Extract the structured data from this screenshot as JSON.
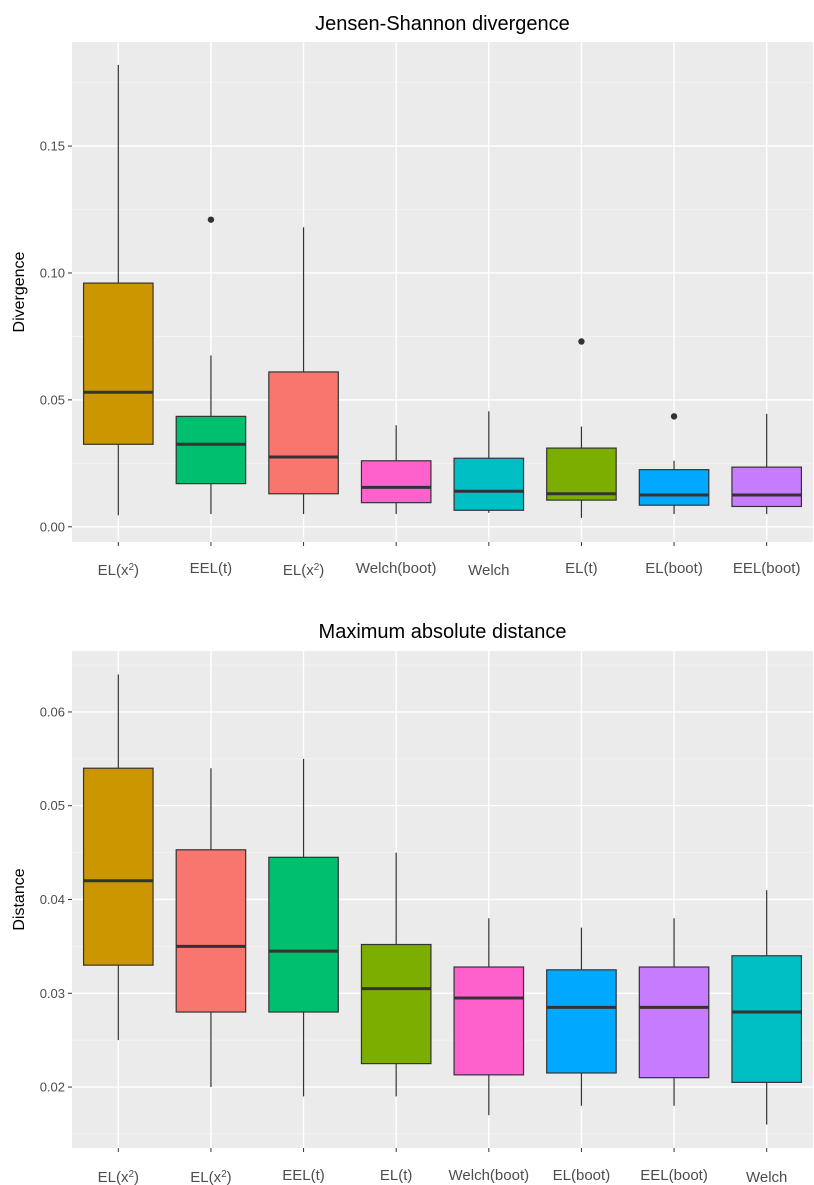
{
  "chart_data": [
    {
      "type": "box",
      "title": "Jensen-Shannon divergence",
      "xlabel": "",
      "ylabel": "Divergence",
      "ylim": [
        -0.006,
        0.191
      ],
      "yticks": [
        0.0,
        0.05,
        0.1,
        0.15
      ],
      "ytick_labels": [
        "0.00",
        "0.05",
        "0.10",
        "0.15"
      ],
      "grid": true,
      "categories": [
        {
          "base": "EL(x",
          "sup": "2",
          "tail": ")",
          "color": "#CC9600",
          "whisker_low": 0.0045,
          "q1": 0.0325,
          "median": 0.053,
          "q3": 0.096,
          "whisker_high": 0.182,
          "outliers": []
        },
        {
          "base": "EEL(t)",
          "sup": "",
          "tail": "",
          "color": "#00BF6E",
          "whisker_low": 0.005,
          "q1": 0.017,
          "median": 0.0325,
          "q3": 0.0435,
          "whisker_high": 0.0675,
          "outliers": [
            0.121
          ]
        },
        {
          "base": "EL(x",
          "sup": "2",
          "tail": ")",
          "color": "#F8766D",
          "whisker_low": 0.005,
          "q1": 0.013,
          "median": 0.0275,
          "q3": 0.061,
          "whisker_high": 0.118,
          "outliers": []
        },
        {
          "base": "Welch(boot)",
          "sup": "",
          "tail": "",
          "color": "#FF61CC",
          "whisker_low": 0.005,
          "q1": 0.0095,
          "median": 0.0155,
          "q3": 0.026,
          "whisker_high": 0.04,
          "outliers": []
        },
        {
          "base": "Welch",
          "sup": "",
          "tail": "",
          "color": "#00BFC4",
          "whisker_low": 0.0055,
          "q1": 0.0065,
          "median": 0.014,
          "q3": 0.027,
          "whisker_high": 0.0455,
          "outliers": []
        },
        {
          "base": "EL(t)",
          "sup": "",
          "tail": "",
          "color": "#7CAE00",
          "whisker_low": 0.0035,
          "q1": 0.0105,
          "median": 0.013,
          "q3": 0.031,
          "whisker_high": 0.0395,
          "outliers": [
            0.073
          ]
        },
        {
          "base": "EL(boot)",
          "sup": "",
          "tail": "",
          "color": "#00A9FF",
          "whisker_low": 0.005,
          "q1": 0.0085,
          "median": 0.0125,
          "q3": 0.0225,
          "whisker_high": 0.026,
          "outliers": [
            0.0435
          ]
        },
        {
          "base": "EEL(boot)",
          "sup": "",
          "tail": "",
          "color": "#C77CFF",
          "whisker_low": 0.005,
          "q1": 0.008,
          "median": 0.0125,
          "q3": 0.0235,
          "whisker_high": 0.0445,
          "outliers": []
        }
      ]
    },
    {
      "type": "box",
      "title": "Maximum absolute distance",
      "xlabel": "",
      "ylabel": "Distance",
      "ylim": [
        0.0135,
        0.0665
      ],
      "yticks": [
        0.02,
        0.03,
        0.04,
        0.05,
        0.06
      ],
      "ytick_labels": [
        "0.02",
        "0.03",
        "0.04",
        "0.05",
        "0.06"
      ],
      "grid": true,
      "categories": [
        {
          "base": "EL(x",
          "sup": "2",
          "tail": ")",
          "color": "#CC9600",
          "whisker_low": 0.025,
          "q1": 0.033,
          "median": 0.042,
          "q3": 0.054,
          "whisker_high": 0.064,
          "outliers": []
        },
        {
          "base": "EL(x",
          "sup": "2",
          "tail": ")",
          "color": "#F8766D",
          "whisker_low": 0.02,
          "q1": 0.028,
          "median": 0.035,
          "q3": 0.0453,
          "whisker_high": 0.054,
          "outliers": []
        },
        {
          "base": "EEL(t)",
          "sup": "",
          "tail": "",
          "color": "#00BF6E",
          "whisker_low": 0.019,
          "q1": 0.028,
          "median": 0.0345,
          "q3": 0.0445,
          "whisker_high": 0.055,
          "outliers": []
        },
        {
          "base": "EL(t)",
          "sup": "",
          "tail": "",
          "color": "#7CAE00",
          "whisker_low": 0.019,
          "q1": 0.0225,
          "median": 0.0305,
          "q3": 0.0352,
          "whisker_high": 0.045,
          "outliers": []
        },
        {
          "base": "Welch(boot)",
          "sup": "",
          "tail": "",
          "color": "#FF61CC",
          "whisker_low": 0.017,
          "q1": 0.0213,
          "median": 0.0295,
          "q3": 0.0328,
          "whisker_high": 0.038,
          "outliers": []
        },
        {
          "base": "EL(boot)",
          "sup": "",
          "tail": "",
          "color": "#00A9FF",
          "whisker_low": 0.018,
          "q1": 0.0215,
          "median": 0.0285,
          "q3": 0.0325,
          "whisker_high": 0.037,
          "outliers": []
        },
        {
          "base": "EEL(boot)",
          "sup": "",
          "tail": "",
          "color": "#C77CFF",
          "whisker_low": 0.018,
          "q1": 0.021,
          "median": 0.0285,
          "q3": 0.0328,
          "whisker_high": 0.038,
          "outliers": []
        },
        {
          "base": "Welch",
          "sup": "",
          "tail": "",
          "color": "#00BFC4",
          "whisker_low": 0.016,
          "q1": 0.0205,
          "median": 0.028,
          "q3": 0.034,
          "whisker_high": 0.041,
          "outliers": []
        }
      ]
    }
  ]
}
